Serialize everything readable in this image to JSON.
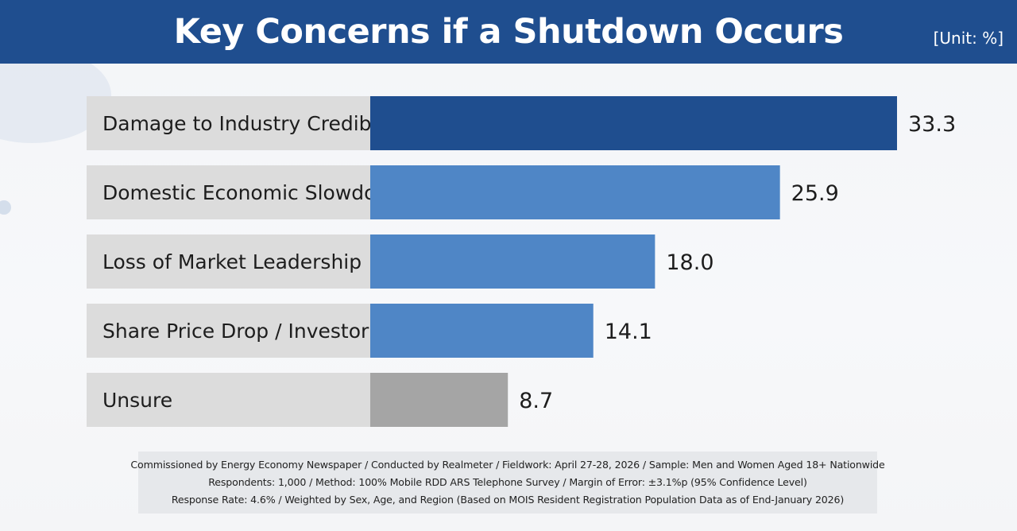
{
  "header": {
    "title": "Key Concerns if a Shutdown Occurs",
    "unit": "[Unit: %]"
  },
  "chart_data": {
    "type": "bar",
    "orientation": "horizontal",
    "title": "Key Concerns if a Shutdown Occurs",
    "unit": "%",
    "categories": [
      "Damage to Industry Credibility",
      "Domestic Economic Slowdown",
      "Loss of Market Leadership",
      "Share Price Drop / Investor Losses",
      "Unsure"
    ],
    "values": [
      33.3,
      25.9,
      18.0,
      14.1,
      8.7
    ],
    "value_labels": [
      "33.3",
      "25.9",
      "18.0",
      "14.1",
      "8.7"
    ],
    "bar_colors": [
      "#1f4e8f",
      "#4f86c6",
      "#4f86c6",
      "#4f86c6",
      "#a5a5a5"
    ],
    "label_background": "#dcdcdc",
    "grid": false,
    "legend": "none"
  },
  "footer": {
    "lines": [
      "Commissioned by Energy Economy Newspaper  /  Conducted by Realmeter  /  Fieldwork: April 27-28, 2026  /  Sample: Men and Women Aged 18+ Nationwide",
      "Respondents: 1,000  /  Method: 100% Mobile RDD ARS Telephone Survey  /  Margin of Error: ±3.1%p (95% Confidence Level)",
      "Response Rate: 4.6%  /  Weighted by Sex, Age, and Region (Based on MOIS Resident Registration Population Data as of End-January 2026)"
    ]
  }
}
